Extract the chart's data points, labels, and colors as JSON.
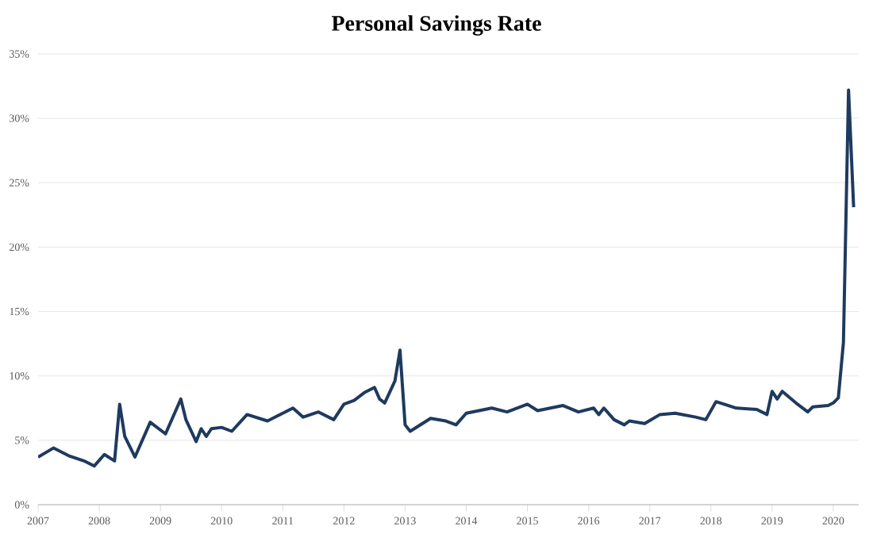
{
  "chart_data": {
    "type": "line",
    "title": "Personal Savings Rate",
    "x": [
      "2007-01",
      "2007-04",
      "2007-07",
      "2007-10",
      "2007-12",
      "2008-02",
      "2008-04",
      "2008-05",
      "2008-06",
      "2008-08",
      "2008-11",
      "2009-02",
      "2009-05",
      "2009-06",
      "2009-08",
      "2009-09",
      "2009-10",
      "2009-11",
      "2010-01",
      "2010-03",
      "2010-06",
      "2010-10",
      "2011-01",
      "2011-03",
      "2011-05",
      "2011-08",
      "2011-11",
      "2012-01",
      "2012-03",
      "2012-05",
      "2012-07",
      "2012-08",
      "2012-09",
      "2012-11",
      "2012-12",
      "2013-01",
      "2013-02",
      "2013-06",
      "2013-09",
      "2013-11",
      "2014-01",
      "2014-06",
      "2014-09",
      "2015-01",
      "2015-03",
      "2015-08",
      "2015-11",
      "2016-02",
      "2016-03",
      "2016-04",
      "2016-06",
      "2016-08",
      "2016-09",
      "2016-12",
      "2017-03",
      "2017-06",
      "2017-10",
      "2017-12",
      "2018-02",
      "2018-06",
      "2018-10",
      "2018-12",
      "2019-01",
      "2019-02",
      "2019-03",
      "2019-06",
      "2019-08",
      "2019-09",
      "2019-12",
      "2020-01",
      "2020-02",
      "2020-03",
      "2020-04",
      "2020-05"
    ],
    "values": [
      3.7,
      4.4,
      3.8,
      3.4,
      3.0,
      3.9,
      3.4,
      7.8,
      5.3,
      3.7,
      6.4,
      5.5,
      8.2,
      6.6,
      4.9,
      5.9,
      5.3,
      5.9,
      6.0,
      5.7,
      7.0,
      6.5,
      7.1,
      7.5,
      6.8,
      7.2,
      6.6,
      7.8,
      8.1,
      8.7,
      9.1,
      8.2,
      7.9,
      9.6,
      12.0,
      6.2,
      5.7,
      6.7,
      6.5,
      6.2,
      7.1,
      7.5,
      7.2,
      7.8,
      7.3,
      7.7,
      7.2,
      7.5,
      7.0,
      7.5,
      6.6,
      6.2,
      6.5,
      6.3,
      7.0,
      7.1,
      6.8,
      6.6,
      8.0,
      7.5,
      7.4,
      7.0,
      8.8,
      8.2,
      8.8,
      7.8,
      7.2,
      7.6,
      7.7,
      7.9,
      8.3,
      12.6,
      32.2,
      23.1
    ],
    "color": "#1f3a5f",
    "xlim": [
      "2007-01",
      "2020-06"
    ],
    "xticks": [
      "2007",
      "2008",
      "2009",
      "2010",
      "2011",
      "2012",
      "2013",
      "2014",
      "2015",
      "2016",
      "2017",
      "2018",
      "2019",
      "2020"
    ],
    "ylim": [
      0,
      35
    ],
    "yticks": [
      {
        "value": 0,
        "label": "0%"
      },
      {
        "value": 5,
        "label": "5%"
      },
      {
        "value": 10,
        "label": "10%"
      },
      {
        "value": 15,
        "label": "15%"
      },
      {
        "value": 20,
        "label": "20%"
      },
      {
        "value": 25,
        "label": "25%"
      },
      {
        "value": 30,
        "label": "30%"
      },
      {
        "value": 35,
        "label": "35%"
      }
    ],
    "grid": "y",
    "marker": "none",
    "line_style": "solid"
  }
}
